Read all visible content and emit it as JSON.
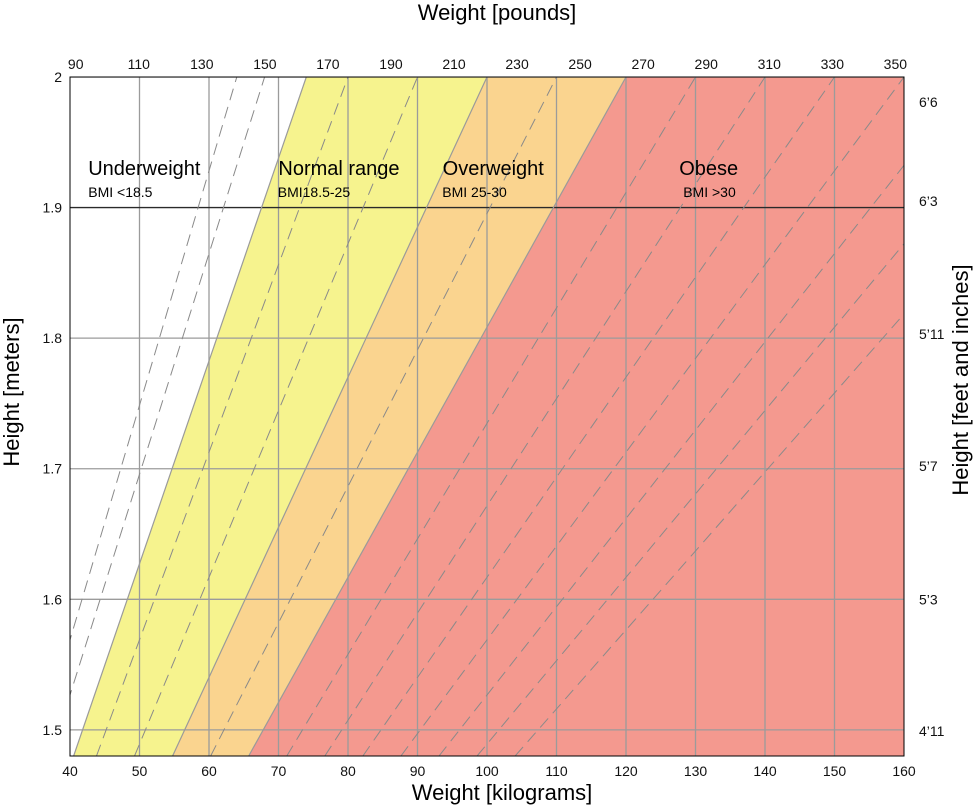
{
  "chart_data": {
    "type": "area",
    "title": "",
    "xlabel": "Weight [kilograms]",
    "x2label": "Weight [pounds]",
    "ylabel": "Height [meters]",
    "y2label": "Height [feet and inches]",
    "xlim": [
      40,
      160
    ],
    "ylim": [
      1.48,
      2.0
    ],
    "x_ticks": [
      40,
      50,
      60,
      70,
      80,
      90,
      100,
      110,
      120,
      130,
      140,
      150,
      160
    ],
    "y_ticks": [
      1.5,
      1.6,
      1.7,
      1.8,
      1.9,
      2
    ],
    "pound_ticks": [
      90,
      110,
      130,
      150,
      170,
      190,
      210,
      230,
      250,
      270,
      290,
      310,
      330,
      350
    ],
    "feet_ticks": [
      {
        "label": "4’11",
        "height_m": 1.499
      },
      {
        "label": "5’3",
        "height_m": 1.6
      },
      {
        "label": "5’7",
        "height_m": 1.702
      },
      {
        "label": "5’11",
        "height_m": 1.803
      },
      {
        "label": "6’3",
        "height_m": 1.905
      },
      {
        "label": "6’6",
        "height_m": 1.981
      }
    ],
    "zones": [
      {
        "name": "Underweight",
        "bmi_label": "BMI <18.5",
        "bmi_min": 0,
        "bmi_max": 18.5,
        "color": "#ffffff"
      },
      {
        "name": "Normal range",
        "bmi_label": "BMI18.5-25",
        "bmi_min": 18.5,
        "bmi_max": 25,
        "color": "#f6f38e"
      },
      {
        "name": "Overweight",
        "bmi_label": "BMI 25-30",
        "bmi_min": 25,
        "bmi_max": 30,
        "color": "#fad48f"
      },
      {
        "name": "Obese",
        "bmi_label": "BMI >30",
        "bmi_min": 30,
        "bmi_max": 100,
        "color": "#f4998f"
      }
    ],
    "dashed_bmi_lines": [
      16,
      17,
      20,
      22.5,
      27.5,
      32.5,
      35,
      37.5,
      40,
      42.5,
      45,
      47.5
    ],
    "grid": true,
    "colors": {
      "grid": "#9b9b9b",
      "major_grid": "#2a2a2a",
      "boundary": "#9a9a9a",
      "dashed": "#8a8a8a"
    }
  }
}
